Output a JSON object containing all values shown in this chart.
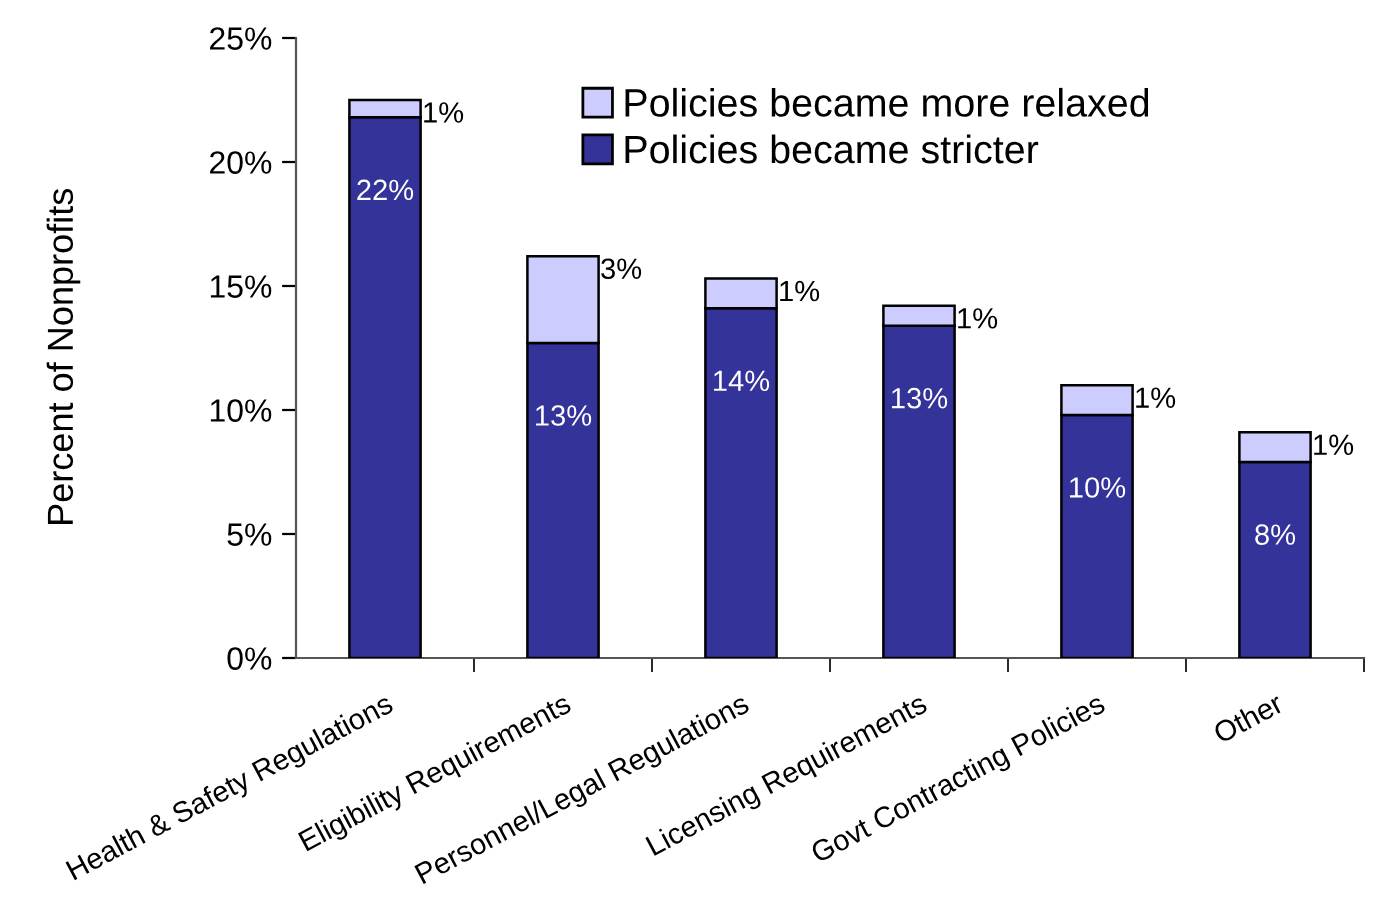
{
  "chart_data": {
    "type": "bar",
    "stacked": true,
    "ylabel": "Percent of Nonprofits",
    "categories": [
      "Health & Safety Regulations",
      "Eligibility Requirements",
      "Personnel/Legal Regulations",
      "Licensing Requirements",
      "Govt Contracting Policies",
      "Other"
    ],
    "series": [
      {
        "name": "Policies became stricter",
        "color": "#333399",
        "values": [
          21.8,
          12.7,
          14.1,
          13.4,
          9.8,
          7.9
        ],
        "value_labels": [
          "22%",
          "13%",
          "14%",
          "13%",
          "10%",
          "8%"
        ]
      },
      {
        "name": "Policies became more relaxed",
        "color": "#ccccff",
        "values": [
          0.7,
          3.5,
          1.2,
          0.8,
          1.2,
          1.2
        ],
        "value_labels": [
          "1%",
          "3%",
          "1%",
          "1%",
          "1%",
          "1%"
        ]
      }
    ],
    "ylim": [
      0,
      25
    ],
    "yticks": [
      {
        "value": 0,
        "label": "0%"
      },
      {
        "value": 5,
        "label": "5%"
      },
      {
        "value": 10,
        "label": "10%"
      },
      {
        "value": 15,
        "label": "15%"
      },
      {
        "value": 20,
        "label": "20%"
      },
      {
        "value": 25,
        "label": "25%"
      }
    ],
    "legend": "top right",
    "grid": false
  }
}
